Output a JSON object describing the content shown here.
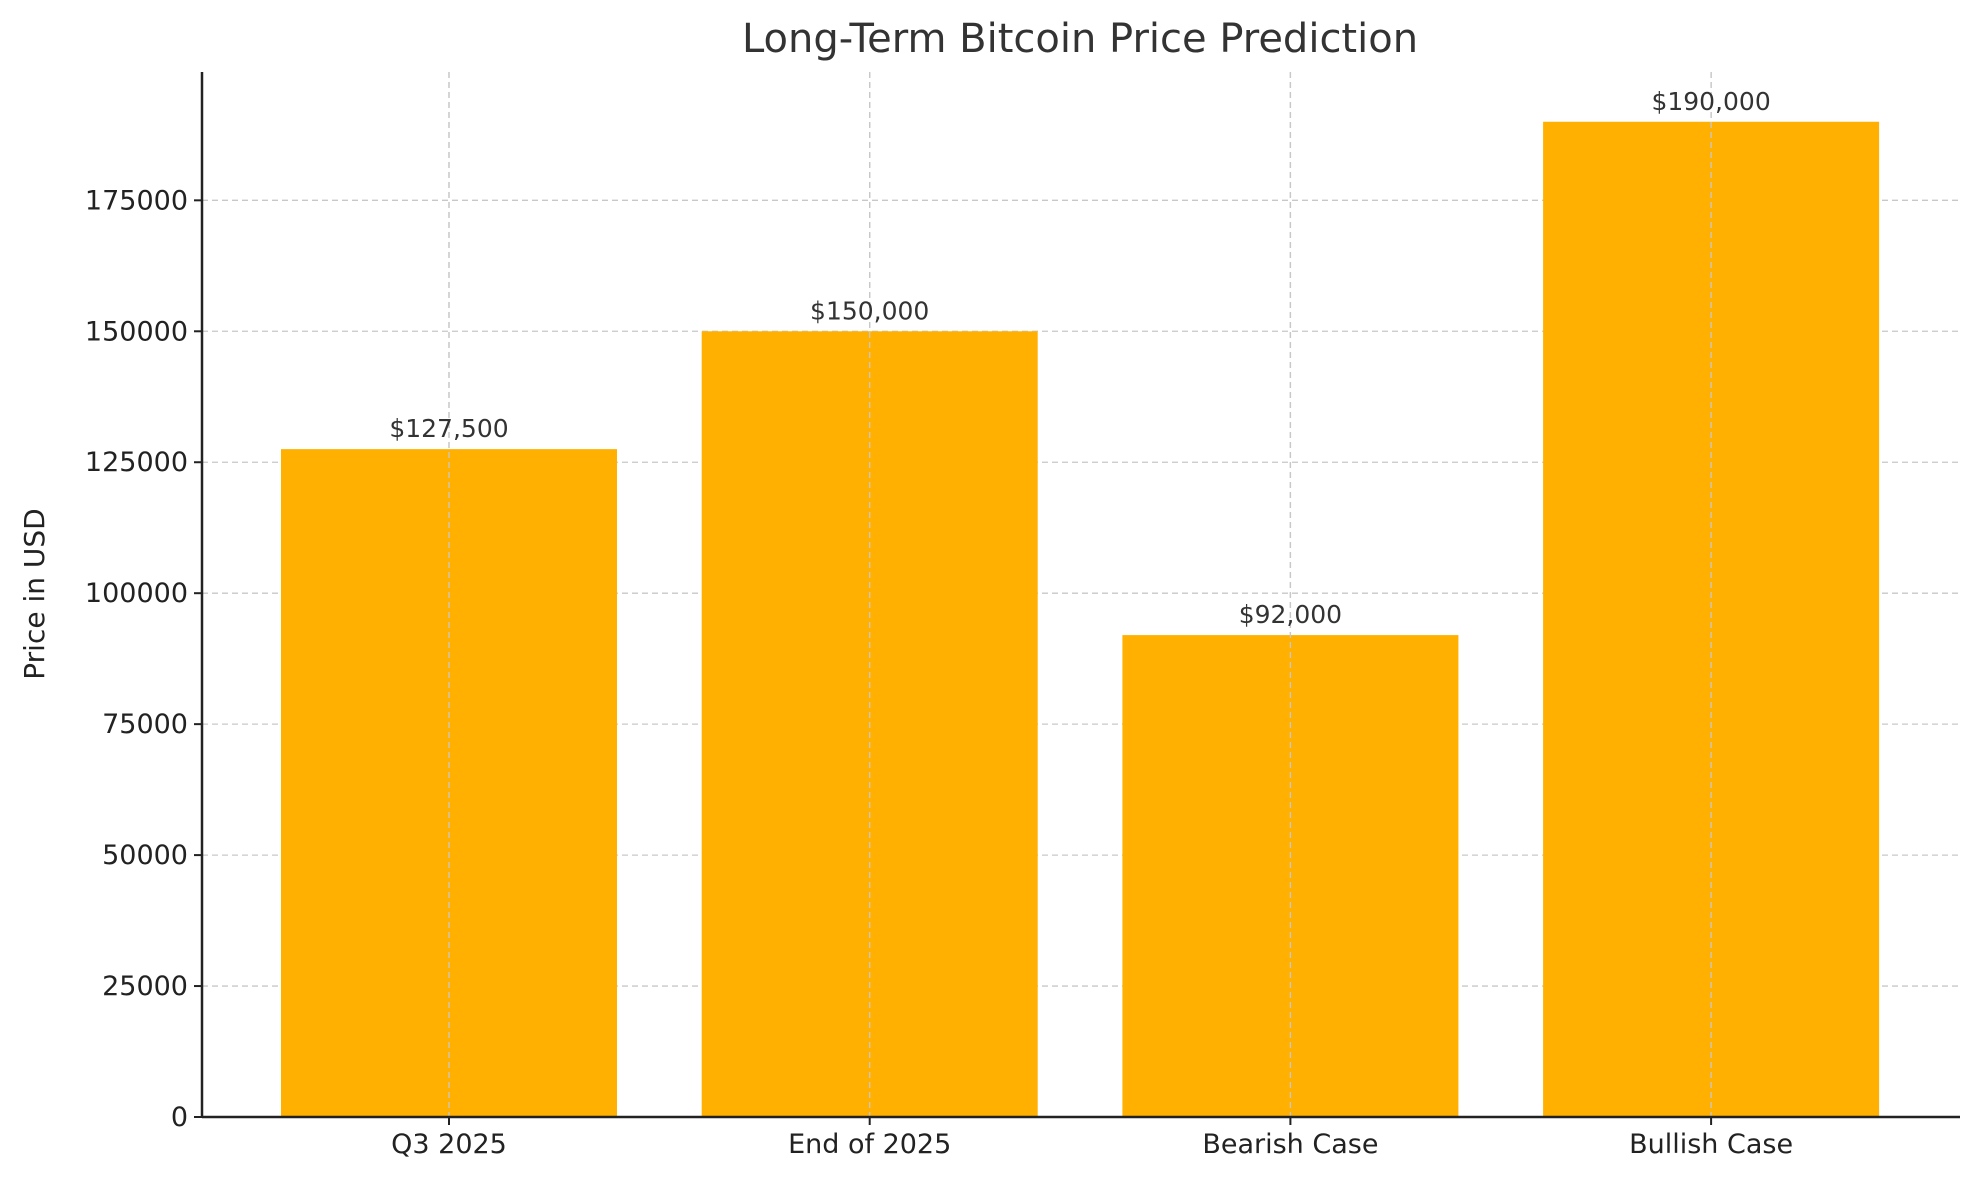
{
  "chart_data": {
    "type": "bar",
    "title": "Long-Term Bitcoin Price Prediction",
    "xlabel": "",
    "ylabel": "Price in USD",
    "categories": [
      "Q3 2025",
      "End of 2025",
      "Bearish Case",
      "Bullish Case"
    ],
    "values": [
      127500,
      150000,
      92000,
      190000
    ],
    "data_labels": [
      "$127,500",
      "$150,000",
      "$92,000",
      "$190,000"
    ],
    "ylim": [
      0,
      199500
    ],
    "yticks": [
      0,
      25000,
      50000,
      75000,
      100000,
      125000,
      150000,
      175000
    ],
    "ytick_labels": [
      "0",
      "25000",
      "50000",
      "75000",
      "100000",
      "125000",
      "150000",
      "175000"
    ],
    "grid": true,
    "bar_color": "#FFB000"
  }
}
